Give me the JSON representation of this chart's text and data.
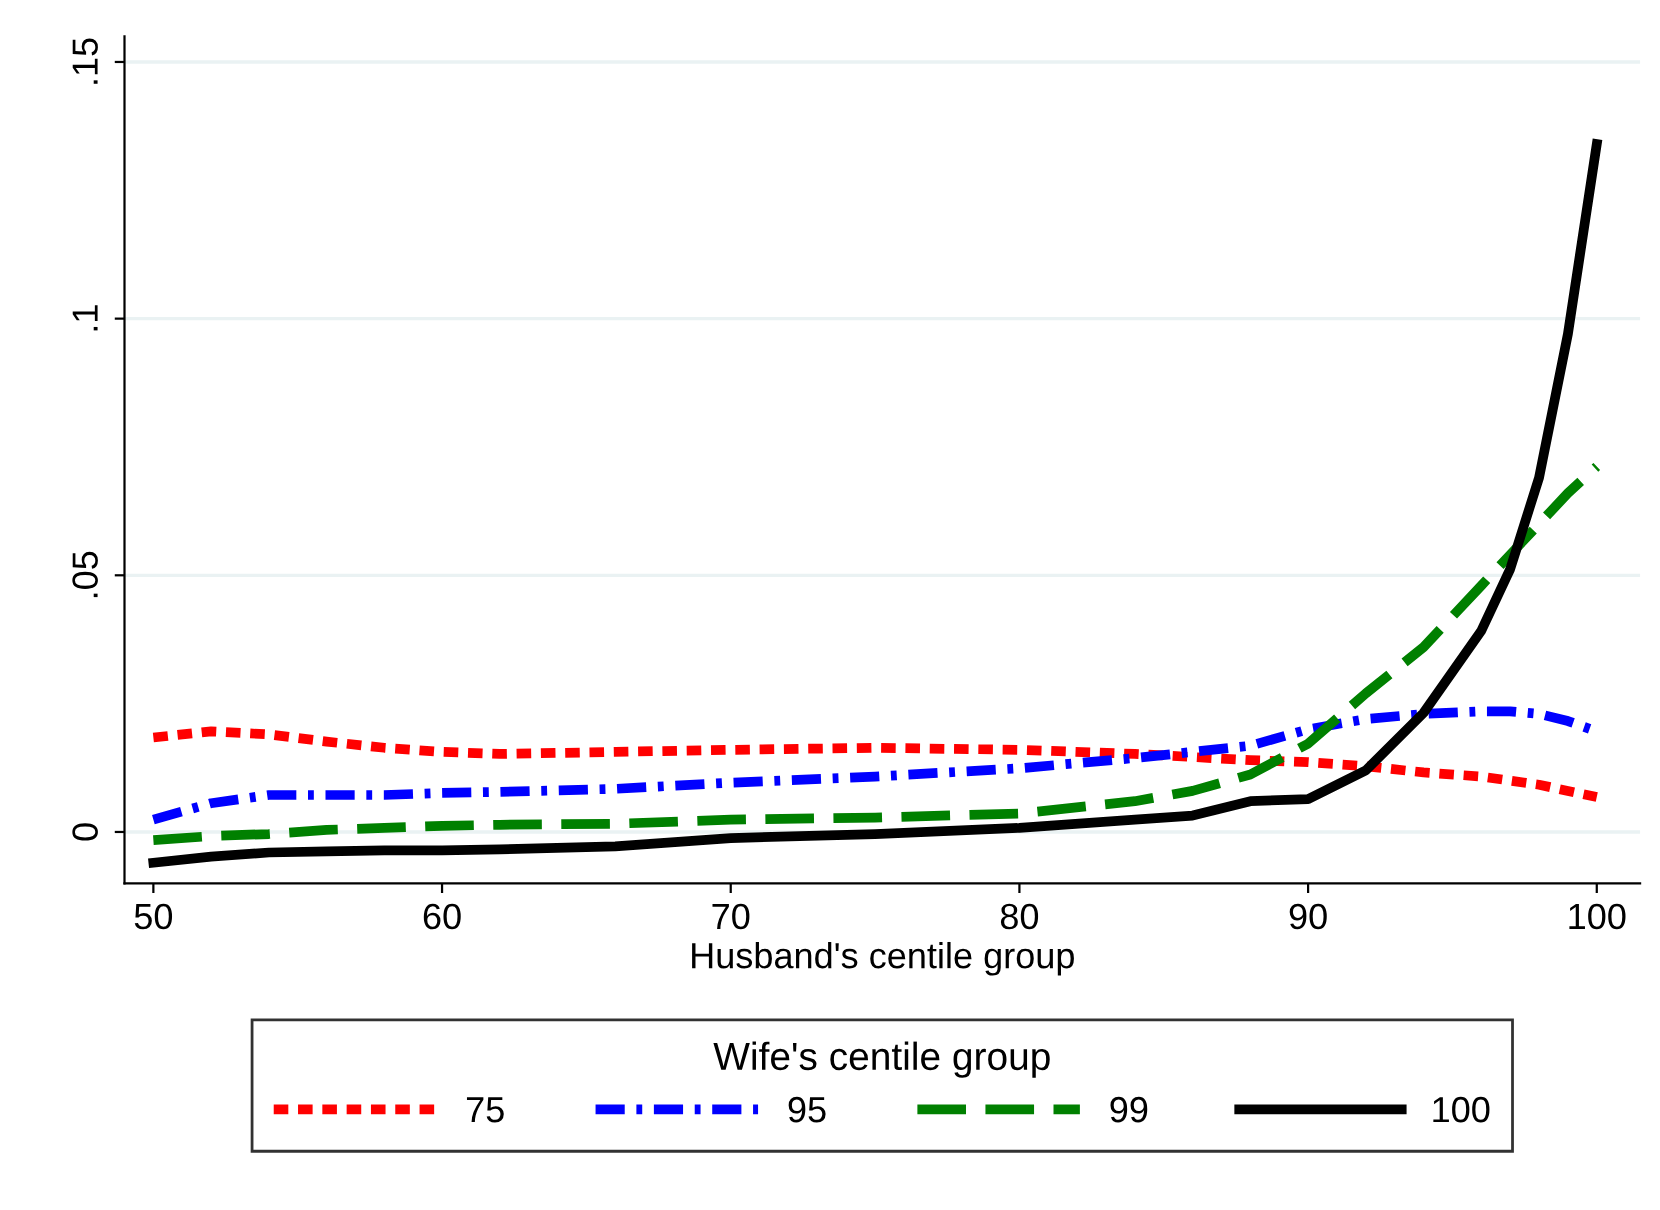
{
  "chart_data": {
    "type": "line",
    "xlabel": "Husband's centile group",
    "legend_title": "Wife's centile group",
    "xlim": [
      49,
      101.5
    ],
    "ylim": [
      -0.01,
      0.155
    ],
    "xticks": [
      50,
      60,
      70,
      80,
      90,
      100
    ],
    "yticks": [
      {
        "value": 0,
        "label": "0"
      },
      {
        "value": 0.05,
        "label": ".05"
      },
      {
        "value": 0.1,
        "label": ".1"
      },
      {
        "value": 0.15,
        "label": ".15"
      }
    ],
    "grid": "y",
    "legend": "bottom",
    "x": [
      50,
      52,
      54,
      56,
      58,
      60,
      62,
      66,
      70,
      75,
      80,
      84,
      86,
      88,
      90,
      92,
      94,
      96,
      97,
      98,
      99,
      100
    ],
    "series": [
      {
        "name": "75",
        "color": "#ff0000",
        "line_style": "dotted",
        "values": [
          0.0184,
          0.0196,
          0.019,
          0.0176,
          0.0164,
          0.0156,
          0.0152,
          0.0156,
          0.016,
          0.0164,
          0.016,
          0.0152,
          0.0146,
          0.014,
          0.0136,
          0.0128,
          0.0116,
          0.0108,
          0.01,
          0.0092,
          0.008,
          0.0068
        ]
      },
      {
        "name": "95",
        "color": "#0000ff",
        "line_style": "dashdot",
        "values": [
          0.0024,
          0.0056,
          0.0072,
          0.0072,
          0.0072,
          0.0076,
          0.0078,
          0.0084,
          0.0096,
          0.0108,
          0.0124,
          0.0144,
          0.0156,
          0.0168,
          0.02,
          0.022,
          0.023,
          0.0235,
          0.0235,
          0.023,
          0.0216,
          0.0196
        ]
      },
      {
        "name": "99",
        "color": "#008000",
        "line_style": "dashed",
        "values": [
          -0.0016,
          -0.0008,
          -0.0004,
          0.0004,
          0.0008,
          0.0012,
          0.0014,
          0.0016,
          0.0024,
          0.0028,
          0.0036,
          0.006,
          0.008,
          0.0112,
          0.0172,
          0.027,
          0.036,
          0.048,
          0.054,
          0.06,
          0.066,
          0.0712
        ]
      },
      {
        "name": "100",
        "color": "#000000",
        "line_style": "solid",
        "values": [
          -0.006,
          -0.0048,
          -0.004,
          -0.0038,
          -0.0036,
          -0.0036,
          -0.0034,
          -0.0028,
          -0.0012,
          -0.0004,
          0.0008,
          0.0024,
          0.0032,
          0.006,
          0.0064,
          0.012,
          0.0232,
          0.0392,
          0.0512,
          0.069,
          0.097,
          0.134
        ]
      }
    ]
  }
}
